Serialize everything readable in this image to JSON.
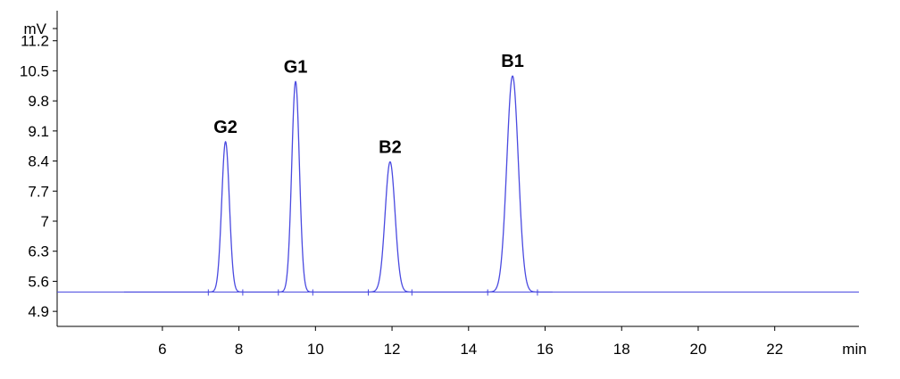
{
  "chart_data": {
    "type": "line",
    "ylabel": "mV",
    "xlabel": "min",
    "xlim": [
      3.25,
      24.2
    ],
    "ylim": [
      4.55,
      11.9
    ],
    "x_ticks": [
      6,
      8,
      10,
      12,
      14,
      16,
      18,
      20,
      22
    ],
    "y_ticks": [
      4.9,
      5.6,
      6.3,
      7,
      7.7,
      8.4,
      9.1,
      9.8,
      10.5,
      11.2
    ],
    "x_tick_labels": [
      "6",
      "8",
      "10",
      "12",
      "14",
      "16",
      "18",
      "20",
      "22"
    ],
    "y_tick_labels": [
      "4.9",
      "5.6",
      "6.3",
      "7",
      "7.7",
      "8.4",
      "9.1",
      "9.8",
      "10.5",
      "11.2"
    ],
    "grid": false,
    "line_color": "#4a4ae0",
    "baseline": 5.35,
    "peaks": [
      {
        "label": "G2",
        "x": 7.65,
        "y": 8.85,
        "sigma": 0.1
      },
      {
        "label": "G1",
        "x": 9.48,
        "y": 10.25,
        "sigma": 0.1
      },
      {
        "label": "B2",
        "x": 11.95,
        "y": 8.38,
        "sigma": 0.13
      },
      {
        "label": "B1",
        "x": 15.15,
        "y": 10.38,
        "sigma": 0.15
      }
    ]
  }
}
